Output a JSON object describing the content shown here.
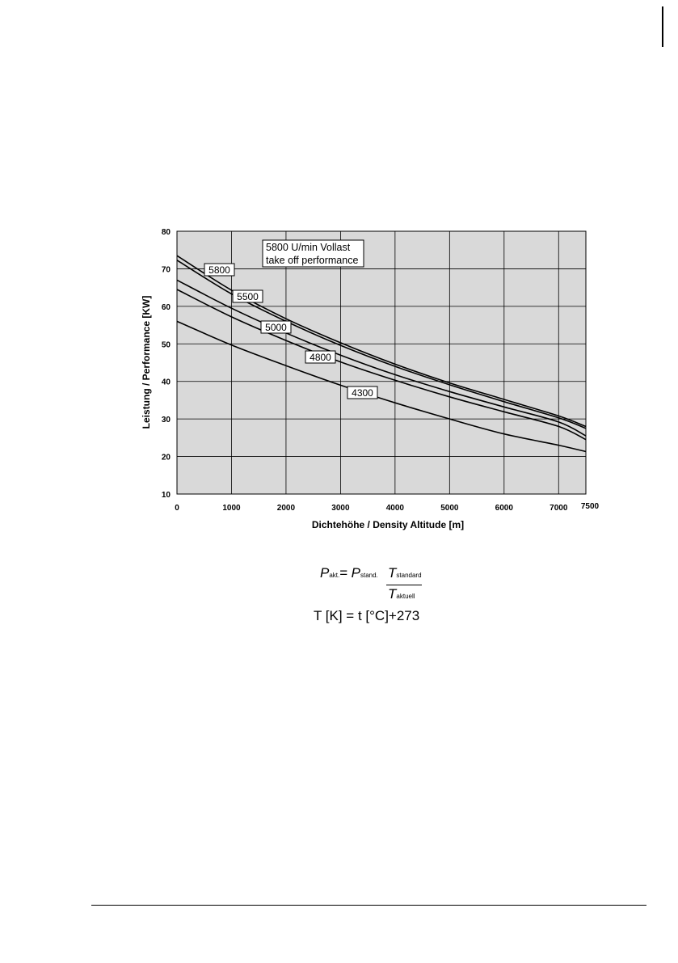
{
  "chart_data": {
    "type": "line",
    "xlabel": "Dichtehöhe / Density Altitude [m]",
    "ylabel": "Leistung / Performance [KW]",
    "xlim": [
      0,
      7500
    ],
    "ylim": [
      10,
      80
    ],
    "x_ticks": [
      "0",
      "1000",
      "2000",
      "3000",
      "4000",
      "5000",
      "6000",
      "7000",
      "7500"
    ],
    "y_ticks": [
      "10",
      "20",
      "30",
      "40",
      "50",
      "60",
      "70",
      "80"
    ],
    "grid": true,
    "annotation": [
      "5800 U/min Vollast",
      "take off performance"
    ],
    "series": [
      {
        "name": "5800",
        "x": [
          0,
          1000,
          2000,
          3000,
          4000,
          5000,
          6000,
          7000,
          7500
        ],
        "values": [
          73.5,
          64.3,
          56.7,
          50.3,
          44.6,
          39.6,
          35.2,
          30.8,
          28.0
        ]
      },
      {
        "name": "5500",
        "x": [
          0,
          1000,
          2000,
          3000,
          4000,
          5000,
          6000,
          7000,
          7500
        ],
        "values": [
          72.3,
          63.3,
          56.0,
          49.6,
          44.0,
          39.1,
          34.6,
          30.3,
          27.5
        ]
      },
      {
        "name": "5000",
        "x": [
          0,
          1000,
          2000,
          3000,
          4000,
          5000,
          6000,
          7000,
          7500
        ],
        "values": [
          67.0,
          59.5,
          52.9,
          47.0,
          41.8,
          37.3,
          33.2,
          29.2,
          25.5
        ]
      },
      {
        "name": "4800",
        "x": [
          0,
          1000,
          2000,
          3000,
          4000,
          5000,
          6000,
          7000,
          7500
        ],
        "values": [
          64.5,
          57.2,
          50.9,
          45.2,
          40.3,
          35.9,
          31.9,
          28.0,
          24.5
        ]
      },
      {
        "name": "4300",
        "x": [
          0,
          1000,
          2000,
          3000,
          4000,
          5000,
          6000,
          7000,
          7500
        ],
        "values": [
          56.0,
          49.7,
          44.2,
          39.0,
          34.3,
          30.0,
          26.0,
          23.0,
          21.3
        ]
      }
    ]
  },
  "formula": {
    "p": "P",
    "p_akt_sub": "akt.",
    "equals": "=",
    "p_stand_sub": "stand.",
    "t": "T",
    "t_standard_sub": "standard",
    "t_aktuell_sub": "aktuell",
    "kelvin_line": "T [K] = t [°C]+273"
  }
}
